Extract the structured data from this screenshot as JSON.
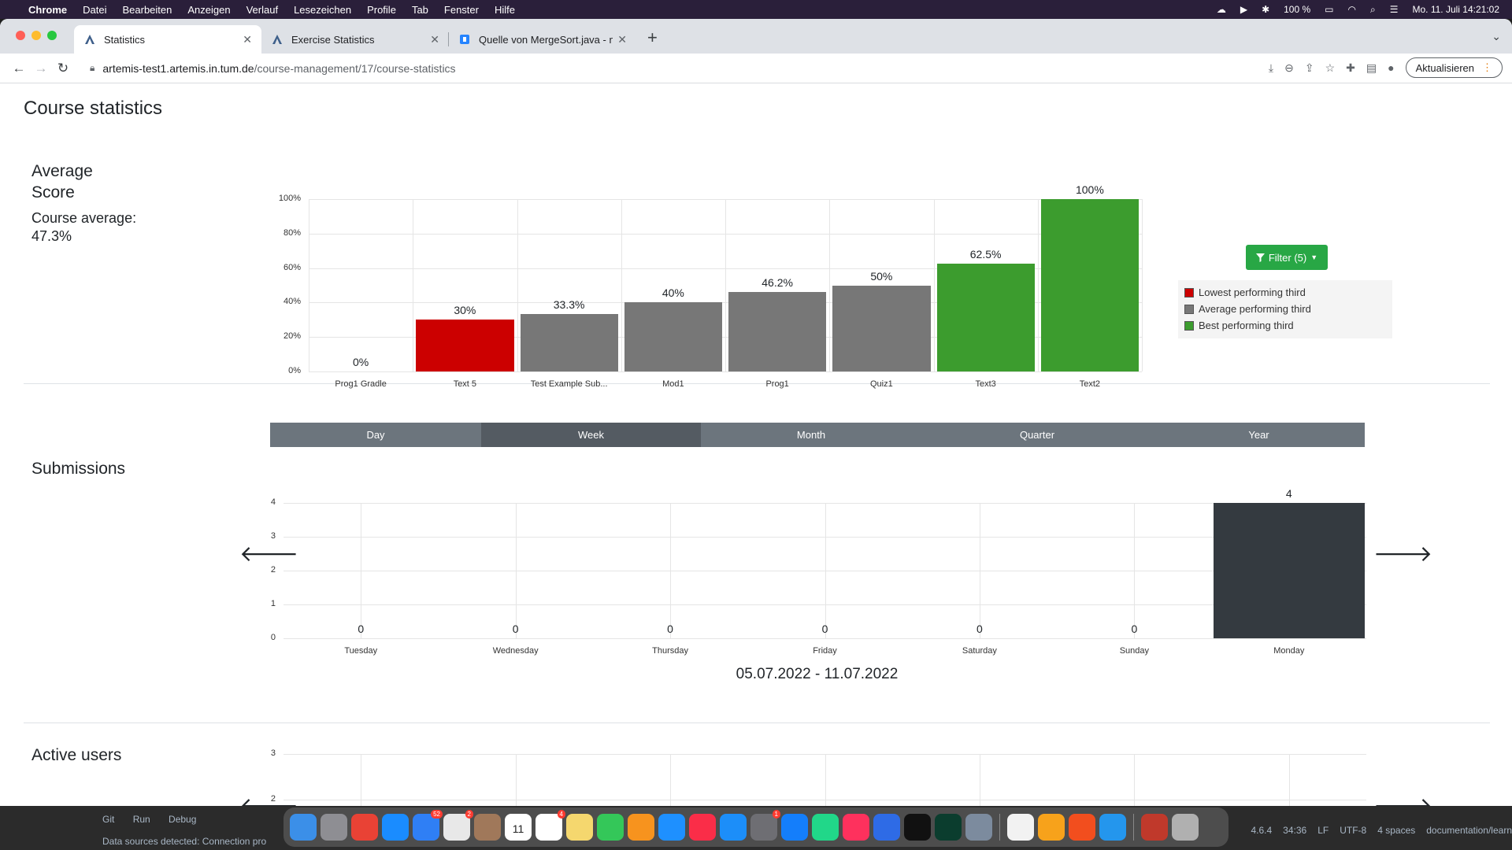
{
  "menubar": {
    "items": [
      "Chrome",
      "Datei",
      "Bearbeiten",
      "Anzeigen",
      "Verlauf",
      "Lesezeichen",
      "Profile",
      "Tab",
      "Fenster",
      "Hilfe"
    ],
    "battery": "100 %",
    "clock": "Mo. 11. Juli  14:21:02"
  },
  "tabs": [
    {
      "title": "Statistics",
      "active": true
    },
    {
      "title": "Exercise Statistics",
      "active": false
    },
    {
      "title": "Quelle von MergeSort.java - m",
      "active": false
    }
  ],
  "toolbar": {
    "url_host": "artemis-test1.artemis.in.tum.de",
    "url_path": "/course-management/17/course-statistics",
    "update_label": "Aktualisieren"
  },
  "page": {
    "title": "Course statistics",
    "average": {
      "label_line1": "Average",
      "label_line2": "Score",
      "course_avg_label": "Course average:",
      "course_avg_value": "47.3%"
    },
    "submissions_label": "Submissions",
    "active_users_label": "Active users",
    "filter_label": "Filter (5)",
    "legend": [
      "Lowest performing third",
      "Average performing third",
      "Best performing third"
    ],
    "periods": [
      "Day",
      "Week",
      "Month",
      "Quarter",
      "Year"
    ],
    "active_period": "Week",
    "date_range": "05.07.2022 - 11.07.2022",
    "prev_arrow": "🡐",
    "next_arrow": "🡒"
  },
  "chart_data": [
    {
      "type": "bar",
      "title": "",
      "categories": [
        "Prog1 Gradle",
        "Text 5",
        "Test Example Sub...",
        "Mod1",
        "Prog1",
        "Quiz1",
        "Text3",
        "Text2"
      ],
      "values": [
        0,
        30,
        33.3,
        40,
        46.2,
        50,
        62.5,
        100
      ],
      "value_labels": [
        "0%",
        "30%",
        "33.3%",
        "40%",
        "46.2%",
        "50%",
        "62.5%",
        "100%"
      ],
      "groups": [
        "low",
        "low",
        "avg",
        "avg",
        "avg",
        "avg",
        "best",
        "best"
      ],
      "colors": {
        "low": "#cc0000",
        "avg": "#777777",
        "best": "#3c9c2e"
      },
      "ylim": [
        0,
        100
      ],
      "yticks": [
        "0%",
        "20%",
        "40%",
        "60%",
        "80%",
        "100%"
      ],
      "grid": true
    },
    {
      "type": "bar",
      "title": "",
      "categories": [
        "Tuesday",
        "Wednesday",
        "Thursday",
        "Friday",
        "Saturday",
        "Sunday",
        "Monday"
      ],
      "values": [
        0,
        0,
        0,
        0,
        0,
        0,
        4
      ],
      "ylim": [
        0,
        4
      ],
      "yticks": [
        "0",
        "1",
        "2",
        "3",
        "4"
      ],
      "color": "#343a40",
      "grid": true
    },
    {
      "type": "bar",
      "title": "",
      "yticks_visible": [
        "2",
        "3"
      ],
      "grid": true
    }
  ],
  "dock": {
    "badges": {
      "mail": "52",
      "slack": "2",
      "calendar": "11",
      "reminders": "4",
      "settings": "1"
    }
  },
  "ide": {
    "left_items": [
      "Git",
      "Run",
      "Debug"
    ],
    "status": "Data sources detected: Connection pro",
    "right_items": [
      "4.6.4",
      "34:36",
      "LF",
      "UTF-8",
      "4 spaces",
      "documentation/learn"
    ]
  }
}
